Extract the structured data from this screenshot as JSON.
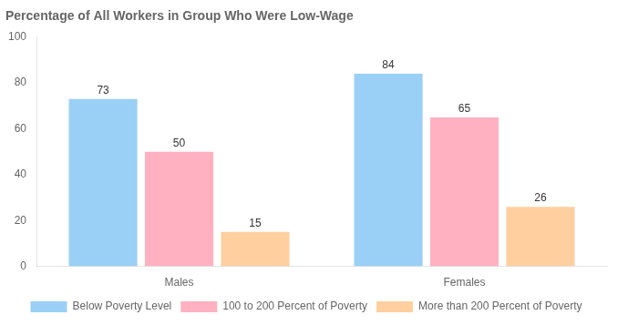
{
  "chart_data": {
    "type": "bar",
    "title": "Percentage of All Workers in Group Who Were Low-Wage",
    "categories": [
      "Males",
      "Females"
    ],
    "series": [
      {
        "name": "Below Poverty Level",
        "values": [
          73,
          84
        ]
      },
      {
        "name": "100 to 200 Percent of Poverty",
        "values": [
          50,
          65
        ]
      },
      {
        "name": "More than 200 Percent of Poverty",
        "values": [
          15,
          26
        ]
      }
    ],
    "ylim": [
      0,
      100
    ],
    "yticks": [
      0,
      20,
      40,
      60,
      80,
      100
    ],
    "grid": false,
    "legend": "bottom",
    "data_labels": true
  }
}
